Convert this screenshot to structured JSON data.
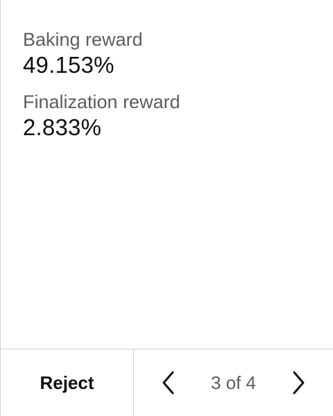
{
  "fields": [
    {
      "label": "Baking reward",
      "value": "49.153%"
    },
    {
      "label": "Finalization reward",
      "value": "2.833%"
    }
  ],
  "footer": {
    "reject_label": "Reject",
    "pagination": "3 of 4",
    "prev_icon": "chevron-left-icon",
    "next_icon": "chevron-right-icon"
  }
}
